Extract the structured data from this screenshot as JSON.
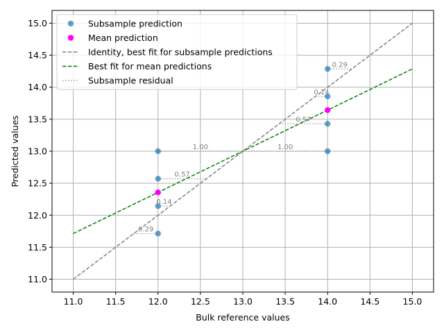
{
  "chart_data": {
    "type": "scatter",
    "xlabel": "Bulk reference values",
    "ylabel": "Predicted values",
    "xlim": [
      10.75,
      15.25
    ],
    "ylim": [
      10.8,
      15.2
    ],
    "xticks": [
      "11.0",
      "11.5",
      "12.0",
      "12.5",
      "13.0",
      "13.5",
      "14.0",
      "14.5",
      "15.0"
    ],
    "yticks": [
      "11.0",
      "11.5",
      "12.0",
      "12.5",
      "13.0",
      "13.5",
      "14.0",
      "14.5",
      "15.0"
    ],
    "grid": true,
    "legend_position": "top-left",
    "series": [
      {
        "name": "Subsample prediction",
        "kind": "scatter",
        "color": "#1f77b4",
        "points": [
          {
            "x": 12,
            "y": 11.714
          },
          {
            "x": 12,
            "y": 12.143
          },
          {
            "x": 12,
            "y": 12.571
          },
          {
            "x": 12,
            "y": 13.0
          },
          {
            "x": 14,
            "y": 13.0
          },
          {
            "x": 14,
            "y": 13.429
          },
          {
            "x": 14,
            "y": 13.857
          },
          {
            "x": 14,
            "y": 14.286
          }
        ]
      },
      {
        "name": "Mean prediction",
        "kind": "scatter",
        "color": "#ff00ff",
        "points": [
          {
            "x": 12,
            "y": 12.357
          },
          {
            "x": 14,
            "y": 13.643
          }
        ]
      },
      {
        "name": "Identity, best fit for subsample predictions",
        "kind": "line",
        "style": "dashed",
        "color": "#808080",
        "points": [
          {
            "x": 11,
            "y": 11
          },
          {
            "x": 15,
            "y": 15
          }
        ]
      },
      {
        "name": "Best fit for mean predictions",
        "kind": "line",
        "style": "dashed",
        "color": "#008000",
        "points": [
          {
            "x": 11,
            "y": 11.714
          },
          {
            "x": 15,
            "y": 14.286
          }
        ]
      },
      {
        "name": "Subsample residual",
        "kind": "residual",
        "style": "dotted",
        "color": "#a0a0a0",
        "segments": [
          {
            "x1": 11.714,
            "x2": 12,
            "y": 11.714,
            "label": "0.29"
          },
          {
            "x1": 12,
            "x2": 12.143,
            "y": 12.143,
            "label": "0.14"
          },
          {
            "x1": 12,
            "x2": 12.571,
            "y": 12.571,
            "label": "0.57"
          },
          {
            "x1": 12,
            "x2": 13.0,
            "y": 13.0,
            "label": "1.00"
          },
          {
            "x1": 13.0,
            "x2": 14,
            "y": 13.0,
            "label": "1.00"
          },
          {
            "x1": 13.429,
            "x2": 14,
            "y": 13.429,
            "label": "0.57"
          },
          {
            "x1": 13.857,
            "x2": 14,
            "y": 13.857,
            "label": "0.14"
          },
          {
            "x1": 14,
            "x2": 14.286,
            "y": 14.286,
            "label": "0.29"
          }
        ]
      }
    ]
  }
}
